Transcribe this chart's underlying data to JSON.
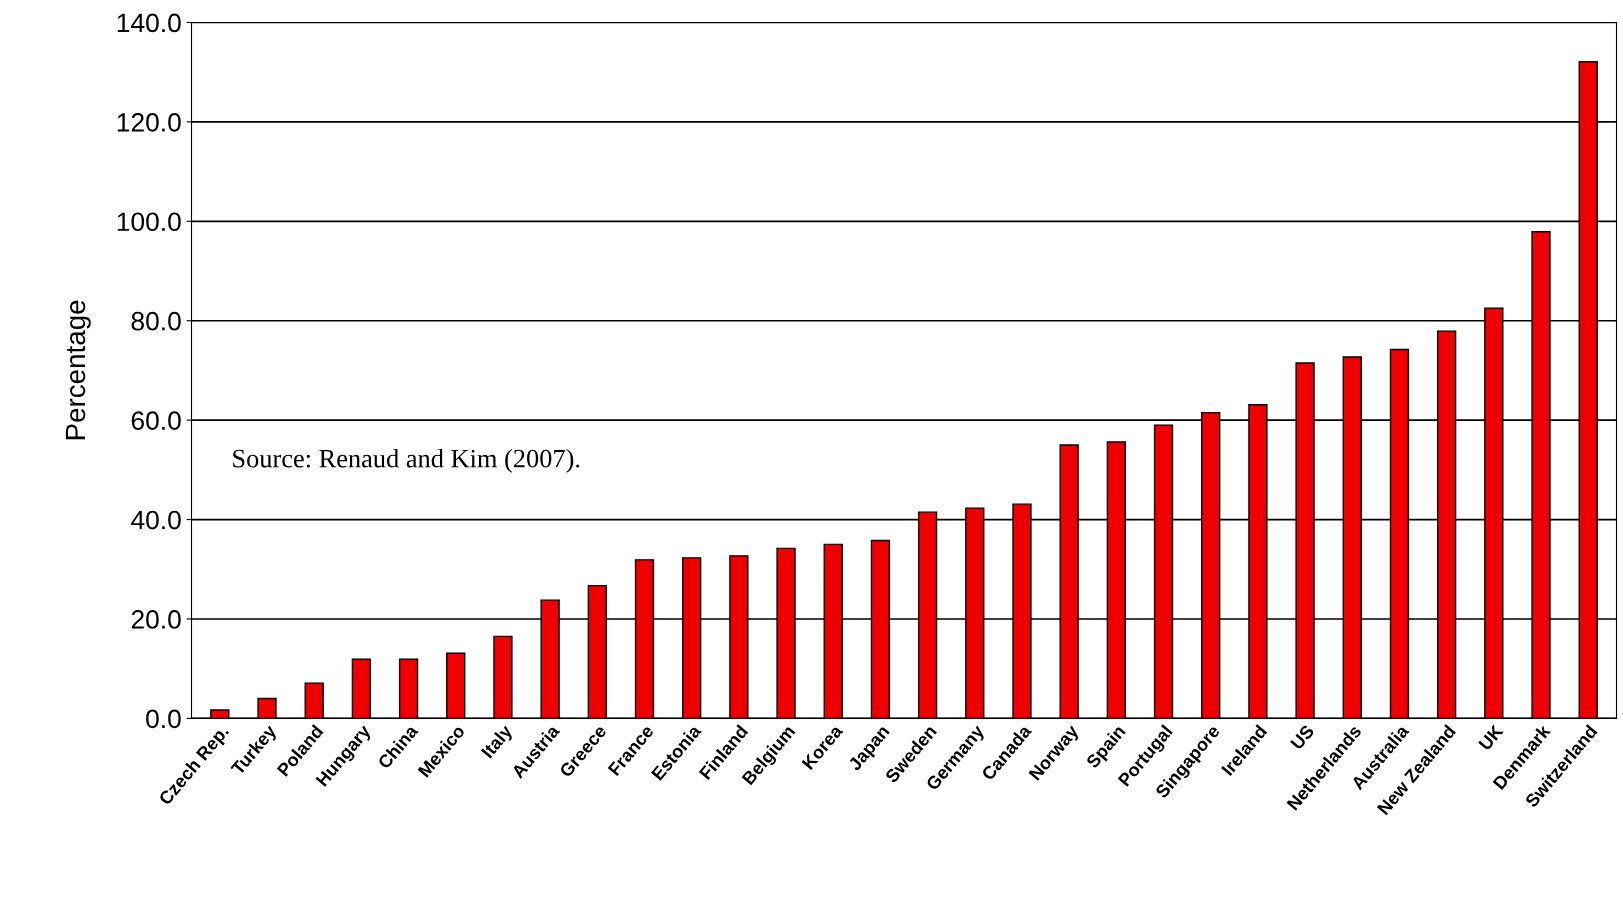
{
  "chart_data": {
    "type": "bar",
    "ylabel": "Percentage",
    "categories": [
      "Czech Rep.",
      "Turkey",
      "Poland",
      "Hungary",
      "China",
      "Mexico",
      "Italy",
      "Austria",
      "Greece",
      "France",
      "Estonia",
      "Finland",
      "Belgium",
      "Korea",
      "Japan",
      "Sweden",
      "Germany",
      "Canada",
      "Norway",
      "Spain",
      "Portugal",
      "Singapore",
      "Ireland",
      "US",
      "Netherlands",
      "Australia",
      "New Zealand",
      "UK",
      "Denmark",
      "Switzerland"
    ],
    "values": [
      1.7,
      4.0,
      7.1,
      11.9,
      11.9,
      13.1,
      16.5,
      23.8,
      26.7,
      31.9,
      32.3,
      32.7,
      34.2,
      35.0,
      35.8,
      41.5,
      42.3,
      43.1,
      55.0,
      55.6,
      59.0,
      61.5,
      63.1,
      71.5,
      72.7,
      74.2,
      77.9,
      82.5,
      97.9,
      132.1
    ],
    "color": "#ee0000",
    "ylim": [
      0,
      140
    ],
    "yticks": [
      {
        "value": 0,
        "label": "0.0"
      },
      {
        "value": 20,
        "label": "20.0"
      },
      {
        "value": 40,
        "label": "40.0"
      },
      {
        "value": 60,
        "label": "60.0"
      },
      {
        "value": 80,
        "label": "80.0"
      },
      {
        "value": 100,
        "label": "100.0"
      },
      {
        "value": 120,
        "label": "120.0"
      },
      {
        "value": 140,
        "label": "140.0"
      }
    ],
    "grid": "y",
    "annotations": [
      "Source: Renaud and Kim (2007)."
    ]
  }
}
